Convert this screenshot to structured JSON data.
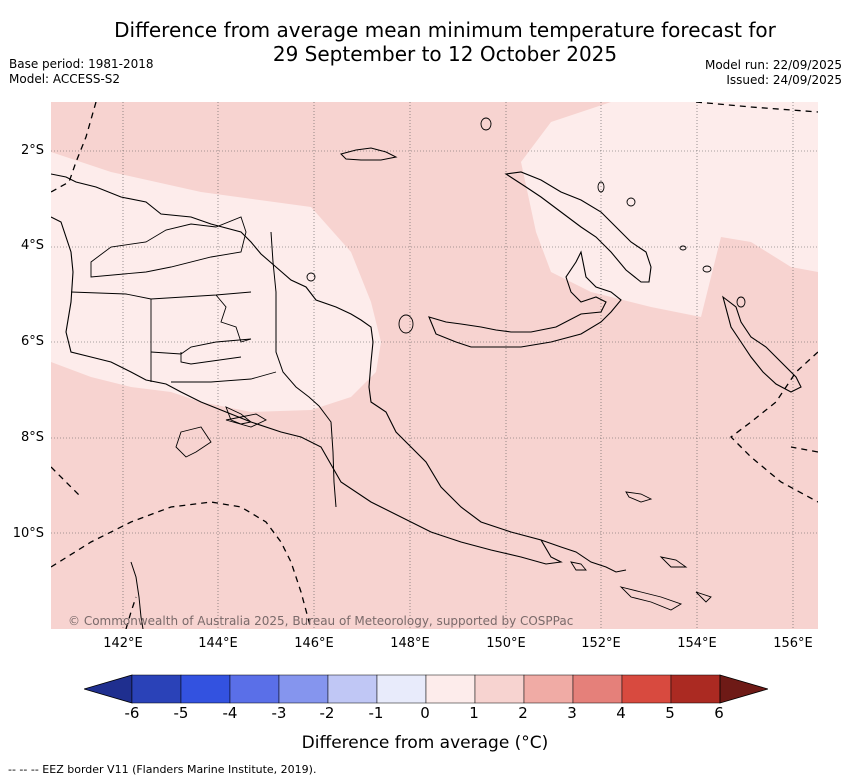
{
  "title_line1": "Difference from average mean minimum temperature forecast for",
  "title_line2": "29 September to 12 October 2025",
  "base_period": "Base period: 1981-2018",
  "model": "Model: ACCESS-S2",
  "model_run": "Model run: 22/09/2025",
  "issued": "Issued: 24/09/2025",
  "lat_labels": [
    "2°S",
    "4°S",
    "6°S",
    "8°S",
    "10°S"
  ],
  "lon_labels": [
    "142°E",
    "144°E",
    "146°E",
    "148°E",
    "150°E",
    "152°E",
    "154°E",
    "156°E"
  ],
  "copyright": "© Commonwealth of Australia 2025, Bureau of Meteorology, supported by COSPPac",
  "colorbar": {
    "title": "Difference from average (°C)",
    "ticks": [
      "-6",
      "-5",
      "-4",
      "-3",
      "-2",
      "-1",
      "0",
      "1",
      "2",
      "3",
      "4",
      "5",
      "6"
    ],
    "colors": [
      "#1f2f8f",
      "#2a42b8",
      "#3352e0",
      "#5a6fe8",
      "#8595ee",
      "#c0c7f5",
      "#e8ebfb",
      "#fdeceb",
      "#f7d3d0",
      "#f0aba5",
      "#e5807a",
      "#d84a3f",
      "#ab2a22",
      "#6e1a16"
    ]
  },
  "map_colors": {
    "range_1_2": "#f7d3d0",
    "range_0_1": "#fdeceb",
    "land_outline": "#000000",
    "gridline": "#555555"
  },
  "footnote": "--  --  -- EEZ border V11 (Flanders Marine Institute, 2019)."
}
